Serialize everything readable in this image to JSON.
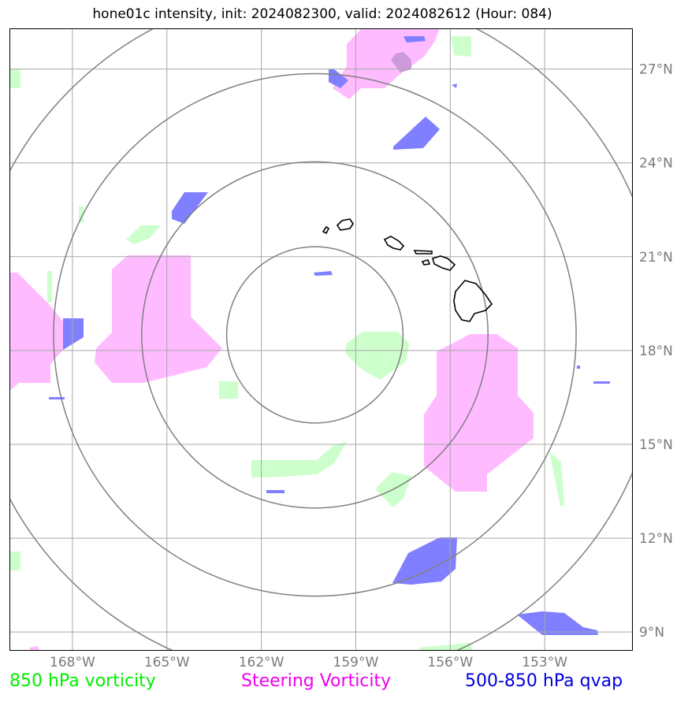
{
  "title": "hone01c intensity, init: 2024082300, valid: 2024082612 (Hour: 084)",
  "map": {
    "extent": {
      "lon_min": -170.0,
      "lon_max": -150.2,
      "lat_min": 8.4,
      "lat_max": 28.3
    },
    "longitude_ticks": [
      {
        "lon": -168,
        "label": "168°W"
      },
      {
        "lon": -165,
        "label": "165°W"
      },
      {
        "lon": -162,
        "label": "162°W"
      },
      {
        "lon": -159,
        "label": "159°W"
      },
      {
        "lon": -156,
        "label": "156°W"
      },
      {
        "lon": -153,
        "label": "153°W"
      }
    ],
    "latitude_ticks": [
      {
        "lat": 9,
        "label": "9°N"
      },
      {
        "lat": 12,
        "label": "12°N"
      },
      {
        "lat": 15,
        "label": "15°N"
      },
      {
        "lat": 18,
        "label": "18°N"
      },
      {
        "lat": 21,
        "label": "21°N"
      },
      {
        "lat": 24,
        "label": "24°N"
      },
      {
        "lat": 27,
        "label": "27°N"
      }
    ],
    "grid": true,
    "gridline_color": "#a8a8a8",
    "range_rings": {
      "center": {
        "lon": -160.3,
        "lat": 18.5
      },
      "radii_deg": [
        2.8,
        5.5,
        8.3,
        11.0
      ],
      "color": "#808080"
    },
    "colors": {
      "vorticity_850": "#ccffcc",
      "steering_vorticity": "#ffbbff",
      "qvap_500_850": "#7f7fff",
      "coastline": "#000000",
      "tick_label": "#7a7a7a"
    }
  },
  "legend": {
    "vorticity_850": "850 hPa vorticity",
    "steering_vorticity": "Steering Vorticity",
    "qvap": "500-850 hPa qvap",
    "vorticity_850_color": "#00ee00",
    "steering_vorticity_color": "#ee00ee",
    "qvap_color": "#0000dd"
  }
}
